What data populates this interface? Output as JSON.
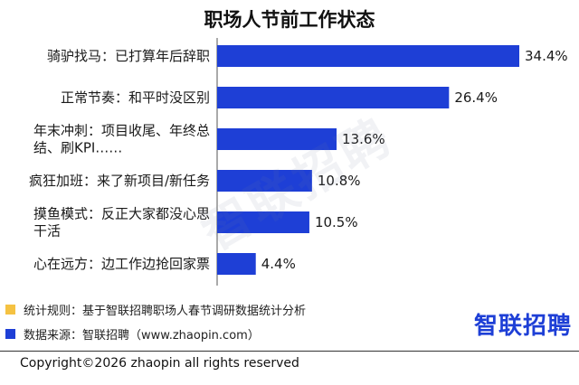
{
  "title": "职场人节前工作状态",
  "chart_data": {
    "type": "bar",
    "orientation": "horizontal",
    "categories": [
      [
        "骑驴找马：已打算年后辞职"
      ],
      [
        "正常节奏：和平时没区别"
      ],
      [
        "年末冲刺：项目收尾、年终总",
        "结、刷KPI……"
      ],
      [
        "疯狂加班：来了新项目/新任务"
      ],
      [
        "摸鱼模式：反正大家都没心思",
        "干活"
      ],
      [
        "心在远方：边工作边抢回家票"
      ]
    ],
    "values": [
      34.4,
      26.4,
      13.6,
      10.8,
      10.5,
      4.4
    ],
    "value_labels": [
      "34.4%",
      "26.4%",
      "13.6%",
      "10.8%",
      "10.5%",
      "4.4%"
    ],
    "xlim": [
      0,
      34.4
    ],
    "bar_color": "#1e3fd6"
  },
  "watermark": "智联招聘",
  "legend": [
    {
      "color": "#f5c242",
      "text": "统计规则：基于智联招聘职场人春节调研数据统计分析"
    },
    {
      "color": "#1e3fd6",
      "text": "数据来源：智联招聘（www.zhaopin.com）"
    }
  ],
  "brand": "智联招聘",
  "copyright": "Copyright©2026 zhaopin all rights reserved"
}
